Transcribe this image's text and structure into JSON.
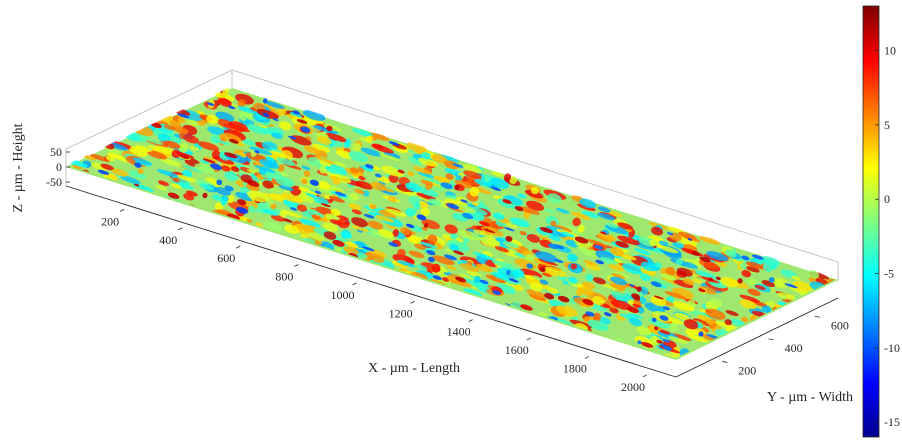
{
  "chart_data": {
    "type": "surface",
    "xlabel": "X - µm - Length",
    "ylabel": "Y - µm - Width",
    "zlabel": "Z - µm - Height",
    "x_ticks": [
      200,
      400,
      600,
      800,
      1000,
      1200,
      1400,
      1600,
      1800,
      2000
    ],
    "y_ticks": [
      200,
      400,
      600
    ],
    "z_ticks": [
      50,
      0,
      -50
    ],
    "xlim": [
      0,
      2100
    ],
    "ylim": [
      0,
      700
    ],
    "zlim": [
      -60,
      60
    ],
    "colorbar": {
      "ticks": [
        10,
        5,
        0,
        -5,
        -10,
        -15
      ],
      "range": [
        -16,
        13
      ],
      "colormap": "jet"
    }
  }
}
